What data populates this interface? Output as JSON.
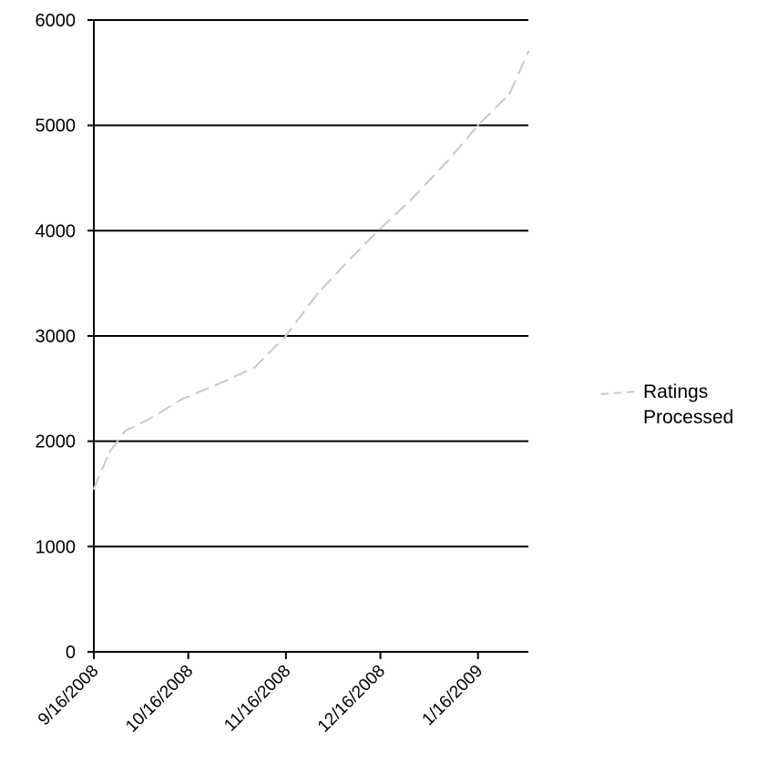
{
  "chart_data": {
    "type": "line",
    "title": "",
    "xlabel": "",
    "ylabel": "",
    "ylim": [
      0,
      6000
    ],
    "yticks": [
      0,
      1000,
      2000,
      3000,
      4000,
      5000,
      6000
    ],
    "ytick_labels": [
      "0",
      "1000",
      "2000",
      "3000",
      "4000",
      "5000",
      "6000"
    ],
    "xlim": [
      "9/16/2008",
      "2/1/2009"
    ],
    "xticks": [
      "9/16/2008",
      "10/16/2008",
      "11/16/2008",
      "12/16/2008",
      "1/16/2009"
    ],
    "grid": "horizontal",
    "legend": {
      "placement": "right",
      "line1": "Ratings",
      "line2": "Processed"
    },
    "series_color": "#c8c8c8",
    "series": [
      {
        "name": "Ratings Processed",
        "x": [
          "9/16/2008",
          "9/21/2008",
          "9/26/2008",
          "10/3/2008",
          "10/14/2008",
          "10/26/2008",
          "11/6/2008",
          "11/16/2008",
          "11/26/2008",
          "12/7/2008",
          "12/16/2008",
          "12/26/2008",
          "1/6/2009",
          "1/16/2009",
          "1/26/2009",
          "2/1/2009"
        ],
        "values": [
          1550,
          1900,
          2100,
          2200,
          2400,
          2550,
          2700,
          3000,
          3400,
          3750,
          4020,
          4300,
          4650,
          5000,
          5300,
          5700
        ]
      }
    ]
  }
}
